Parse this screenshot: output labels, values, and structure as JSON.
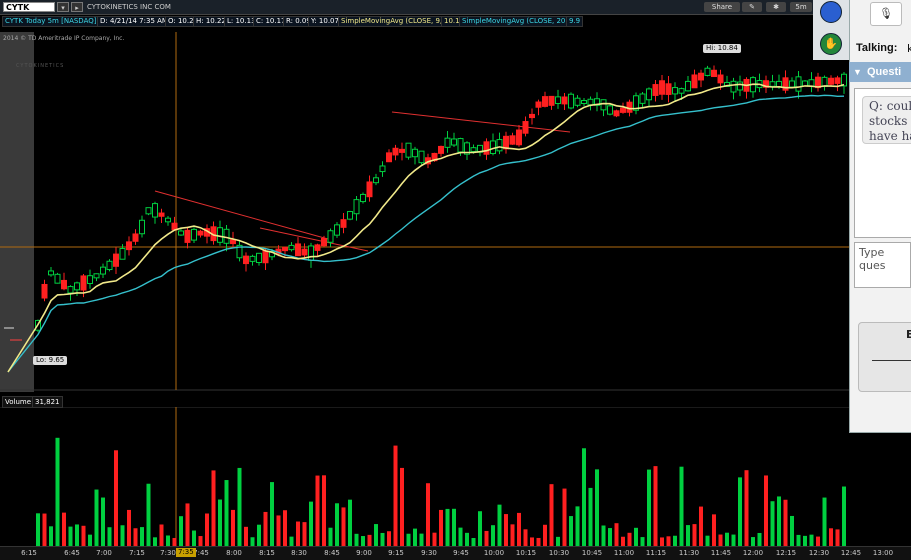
{
  "toolbar": {
    "symbol": "CYTK",
    "company": "CYTOKINETICS INC COM",
    "share": "Share",
    "timeframe": "5m",
    "style": "Style"
  },
  "infobar": {
    "chart_label": "CYTK Today 5m [NASDAQ]",
    "date": "D: 4/21/14 7:35 AM",
    "open": "O: 10.2",
    "high": "H: 10.22",
    "low": "L: 10.13",
    "close": "C: 10.17",
    "range": "R: 0.09",
    "y": "Y: 10.07",
    "sma9_label": "SimpleMovingAvg (CLOSE, 9, 0)",
    "sma9_value": "10.1",
    "sma20_label": "SimpleMovingAvg (CLOSE, 20, 0)",
    "sma20_value": "9.9"
  },
  "copyright": "2014 © TD Ameritrade IP Company, Inc.",
  "watermark": "CYTOKINETICS",
  "hi_label": "Hi: 10.84",
  "lo_label": "Lo: 9.65",
  "volume": {
    "label": "Volume",
    "value": "31,821"
  },
  "xaxis": {
    "ticks": [
      "6:15",
      "6:45",
      "7:00",
      "7:15",
      "7:30",
      "7:45",
      "8:00",
      "8:15",
      "8:30",
      "8:45",
      "9:00",
      "9:15",
      "9:30",
      "9:45",
      "10:00",
      "10:15",
      "10:30",
      "10:45",
      "11:00",
      "11:15",
      "11:30",
      "11:45",
      "12:00",
      "12:15",
      "12:30",
      "12:45",
      "13:00"
    ],
    "cursor_time": "7:35"
  },
  "colors": {
    "up": "#00d040",
    "down": "#ff2020",
    "sma9": "#f1e98a",
    "sma20": "#35c0cc",
    "trend": "#e03030",
    "crosshair": "#b06a10"
  },
  "panel": {
    "talking": "Talking:",
    "talking_value": "k",
    "questions_header": "Questi",
    "question_text": [
      "Q: coul",
      "stocks t",
      "have ha"
    ],
    "input_placeholder": "Type ques",
    "send_label": "E"
  },
  "icons": {
    "mic": "microphone-icon",
    "hand": "raise-hand-icon",
    "screen": "screen-share-icon"
  }
}
